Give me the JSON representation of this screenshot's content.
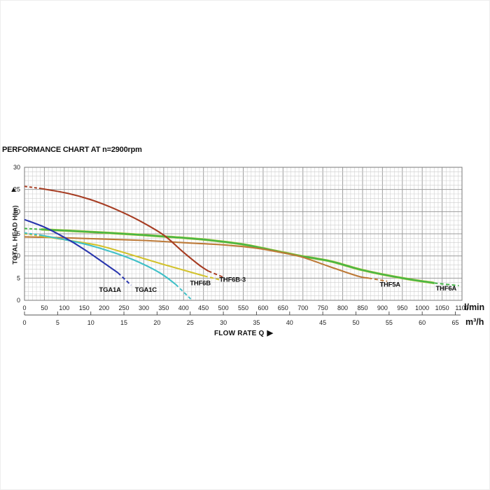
{
  "title": "PERFORMANCE CHART AT n=2900rpm",
  "axes": {
    "y_label": "TOTAL HEAD H(m)",
    "y_arrow": "▲",
    "x_label": "FLOW RATE Q",
    "x_arrow": "▶",
    "unit_primary": "l/min",
    "unit_secondary": "m³/h",
    "y_ticks": [
      0,
      5,
      10,
      15,
      20,
      25,
      30
    ],
    "x_ticks_lmin": [
      0,
      50,
      100,
      150,
      200,
      250,
      300,
      350,
      400,
      450,
      500,
      550,
      600,
      650,
      700,
      750,
      800,
      850,
      900,
      950,
      1000,
      1050,
      1100
    ],
    "x_ticks_m3h": [
      0,
      5,
      10,
      15,
      20,
      25,
      30,
      35,
      40,
      45,
      50,
      55,
      60,
      65
    ]
  },
  "chart_data": {
    "type": "line",
    "title": "PERFORMANCE CHART AT n=2900rpm",
    "xlabel": "FLOW RATE Q",
    "ylabel": "TOTAL HEAD H(m)",
    "x_units": [
      "l/min",
      "m³/h"
    ],
    "xlim": [
      0,
      1100
    ],
    "ylim": [
      0,
      30
    ],
    "grid": "on",
    "legend": "none",
    "m3h_to_lmin": 16.6667,
    "series": [
      {
        "name": "THF6A",
        "color": "#44b648",
        "underlay": "#a5c433",
        "head": [
          [
            0,
            16.2
          ],
          [
            42,
            16.0
          ]
        ],
        "points": [
          [
            42,
            16.0
          ],
          [
            150,
            15.5
          ],
          [
            250,
            15.0
          ],
          [
            350,
            14.4
          ],
          [
            450,
            13.7
          ],
          [
            550,
            12.6
          ],
          [
            650,
            10.8
          ],
          [
            700,
            9.9
          ],
          [
            770,
            8.8
          ],
          [
            850,
            6.8
          ],
          [
            950,
            5.0
          ],
          [
            1030,
            3.9
          ]
        ],
        "tail": [
          [
            1030,
            3.9
          ],
          [
            1092,
            3.3
          ]
        ],
        "label_pos": [
          1060,
          2.2
        ]
      },
      {
        "name": "THF5A",
        "color": "#bd7a38",
        "head": [],
        "points": [
          [
            0,
            14.3
          ],
          [
            100,
            14.1
          ],
          [
            200,
            13.8
          ],
          [
            300,
            13.5
          ],
          [
            400,
            13.0
          ],
          [
            500,
            12.5
          ],
          [
            580,
            11.8
          ],
          [
            650,
            10.7
          ],
          [
            700,
            9.7
          ],
          [
            770,
            7.5
          ],
          [
            840,
            5.4
          ],
          [
            865,
            5.0
          ]
        ],
        "tail": [
          [
            865,
            5.0
          ],
          [
            912,
            4.3
          ]
        ],
        "label_pos": [
          919,
          3.1
        ]
      },
      {
        "name": "THF6B",
        "color": "#d2c22c",
        "head": [
          [
            0,
            15.0
          ],
          [
            40,
            14.5
          ]
        ],
        "points": [
          [
            40,
            14.5
          ],
          [
            120,
            13.4
          ],
          [
            190,
            12.3
          ],
          [
            260,
            10.5
          ],
          [
            330,
            8.6
          ],
          [
            400,
            6.8
          ],
          [
            452,
            5.5
          ]
        ],
        "tail": [
          [
            452,
            5.5
          ],
          [
            492,
            4.6
          ]
        ],
        "label_pos": [
          442,
          3.4
        ]
      },
      {
        "name": "THF6B-3",
        "color": "#a63c22",
        "head": [
          [
            0,
            25.7
          ],
          [
            42,
            25.2
          ]
        ],
        "points": [
          [
            42,
            25.2
          ],
          [
            110,
            24.1
          ],
          [
            170,
            22.6
          ],
          [
            230,
            20.5
          ],
          [
            290,
            17.9
          ],
          [
            350,
            14.7
          ],
          [
            400,
            10.8
          ],
          [
            440,
            7.9
          ],
          [
            462,
            6.6
          ]
        ],
        "tail": [
          [
            462,
            6.6
          ],
          [
            503,
            5.1
          ]
        ],
        "label_pos": [
          523,
          4.2
        ]
      },
      {
        "name": "TGA1C",
        "color": "#3fc0c8",
        "head": [
          [
            0,
            15.2
          ],
          [
            40,
            14.7
          ]
        ],
        "points": [
          [
            40,
            14.7
          ],
          [
            100,
            13.7
          ],
          [
            160,
            12.5
          ],
          [
            220,
            10.9
          ],
          [
            280,
            8.9
          ],
          [
            340,
            6.2
          ],
          [
            380,
            3.6
          ]
        ],
        "tail": [
          [
            380,
            3.6
          ],
          [
            418,
            0.3
          ]
        ],
        "label_pos": [
          305,
          1.9
        ]
      },
      {
        "name": "TGA1A",
        "color": "#2835ad",
        "head": [],
        "points": [
          [
            0,
            18.2
          ],
          [
            50,
            16.5
          ],
          [
            100,
            14.2
          ],
          [
            150,
            11.5
          ],
          [
            200,
            8.4
          ],
          [
            235,
            6.2
          ]
        ],
        "tail": [
          [
            235,
            6.2
          ],
          [
            268,
            3.4
          ]
        ],
        "label_pos": [
          215,
          1.9
        ]
      }
    ]
  }
}
